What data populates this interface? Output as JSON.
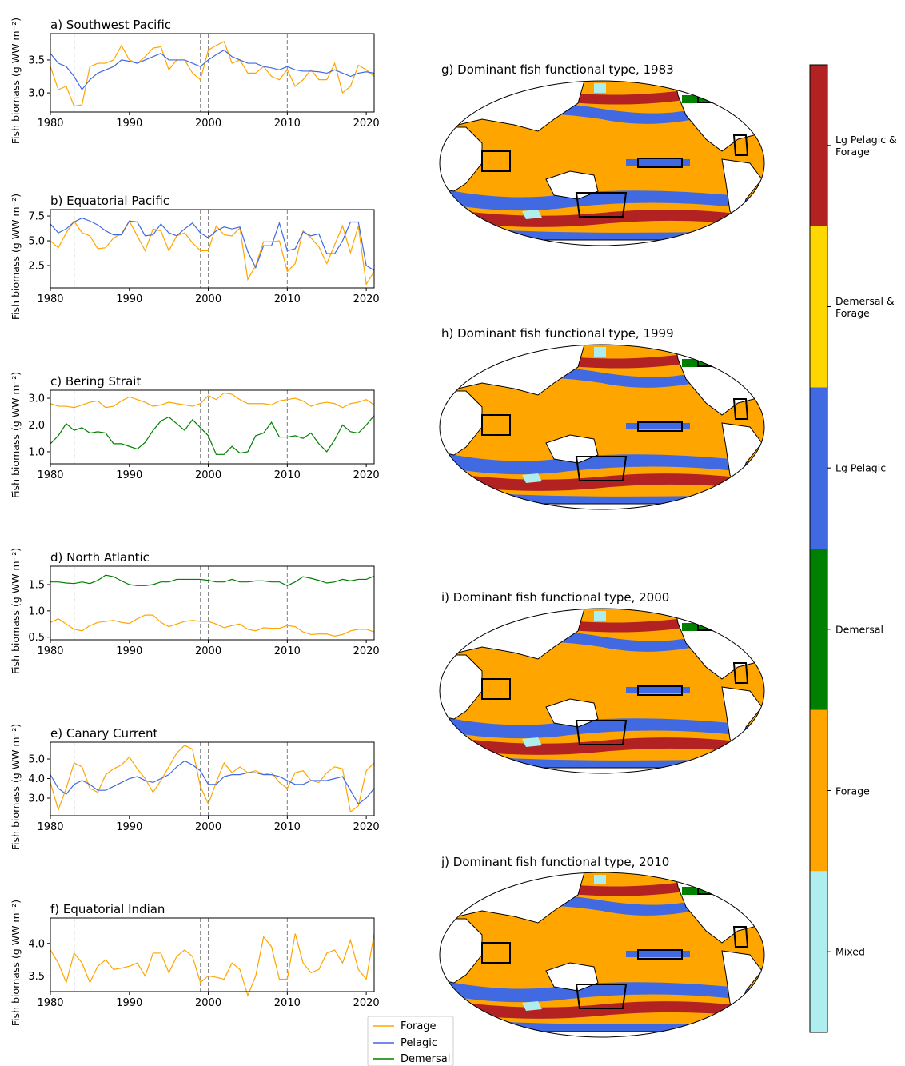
{
  "chart_data": [
    {
      "type": "line",
      "title": "a) Southwest Pacific",
      "ylabel": "Fish biomass (g WW m⁻²)",
      "x": [
        1980,
        1981,
        1982,
        1983,
        1984,
        1985,
        1986,
        1987,
        1988,
        1989,
        1990,
        1991,
        1992,
        1993,
        1994,
        1995,
        1996,
        1997,
        1998,
        1999,
        2000,
        2001,
        2002,
        2003,
        2004,
        2005,
        2006,
        2007,
        2008,
        2009,
        2010,
        2011,
        2012,
        2013,
        2014,
        2015,
        2016,
        2017,
        2018,
        2019,
        2020,
        2021
      ],
      "xlim": [
        1980,
        2021
      ],
      "xticks": [
        1980,
        1990,
        2000,
        2010,
        2020
      ],
      "ylim": [
        2.71,
        3.9
      ],
      "yticks": [
        {
          "value": 3,
          "label": "3.0"
        },
        3.5
      ],
      "vlines": [
        1983,
        1999,
        2000,
        2010
      ],
      "series": [
        {
          "name": "Forage",
          "color": "#ffa500",
          "values": [
            3.4,
            3.05,
            3.1,
            2.8,
            2.82,
            3.4,
            3.45,
            3.45,
            3.5,
            3.72,
            3.5,
            3.45,
            3.55,
            3.68,
            3.7,
            3.35,
            3.5,
            3.5,
            3.3,
            3.2,
            3.65,
            3.72,
            3.78,
            3.45,
            3.5,
            3.3,
            3.3,
            3.4,
            3.25,
            3.2,
            3.35,
            3.1,
            3.2,
            3.35,
            3.2,
            3.2,
            3.45,
            3.0,
            3.1,
            3.42,
            3.35,
            3.25
          ]
        },
        {
          "name": "Pelagic",
          "color": "#4169e1",
          "values": [
            3.6,
            3.45,
            3.4,
            3.25,
            3.05,
            3.2,
            3.3,
            3.35,
            3.4,
            3.5,
            3.48,
            3.45,
            3.5,
            3.55,
            3.6,
            3.5,
            3.5,
            3.5,
            3.45,
            3.4,
            3.5,
            3.58,
            3.65,
            3.55,
            3.5,
            3.45,
            3.45,
            3.4,
            3.38,
            3.35,
            3.4,
            3.35,
            3.33,
            3.33,
            3.32,
            3.3,
            3.35,
            3.3,
            3.25,
            3.3,
            3.32,
            3.3
          ]
        }
      ]
    },
    {
      "type": "line",
      "title": "b) Equatorial Pacific",
      "ylabel": "Fish biomass (g WW m⁻²)",
      "x": [
        1980,
        1981,
        1982,
        1983,
        1984,
        1985,
        1986,
        1987,
        1988,
        1989,
        1990,
        1991,
        1992,
        1993,
        1994,
        1995,
        1996,
        1997,
        1998,
        1999,
        2000,
        2001,
        2002,
        2003,
        2004,
        2005,
        2006,
        2007,
        2008,
        2009,
        2010,
        2011,
        2012,
        2013,
        2014,
        2015,
        2016,
        2017,
        2018,
        2019,
        2020,
        2021
      ],
      "xlim": [
        1980,
        2021
      ],
      "xticks": [
        1980,
        1990,
        2000,
        2010,
        2020
      ],
      "ylim": [
        0.24,
        8.15
      ],
      "yticks": [
        2.5,
        {
          "value": 5,
          "label": "5.0"
        },
        7.5
      ],
      "vlines": [
        1983,
        1999,
        2000,
        2010
      ],
      "series": [
        {
          "name": "Forage",
          "color": "#ffa500",
          "values": [
            5.0,
            4.3,
            5.8,
            7.0,
            5.8,
            5.5,
            4.2,
            4.3,
            5.3,
            5.7,
            7.0,
            5.5,
            4.0,
            6.2,
            6.0,
            4.0,
            5.5,
            5.8,
            4.8,
            4.0,
            4.0,
            6.5,
            5.6,
            5.5,
            6.3,
            1.1,
            2.5,
            4.9,
            4.9,
            5.0,
            1.9,
            2.7,
            6.0,
            5.3,
            4.4,
            2.7,
            4.6,
            6.5,
            3.8,
            6.5,
            0.6,
            1.9
          ]
        },
        {
          "name": "Pelagic",
          "color": "#4169e1",
          "values": [
            6.7,
            5.8,
            6.2,
            6.9,
            7.3,
            7.0,
            6.6,
            6.0,
            5.6,
            5.6,
            7.0,
            6.9,
            5.5,
            5.6,
            6.7,
            5.8,
            5.5,
            6.2,
            6.8,
            5.8,
            5.3,
            6.0,
            6.4,
            6.2,
            6.4,
            3.9,
            2.3,
            4.5,
            4.5,
            6.8,
            4.0,
            4.2,
            5.9,
            5.5,
            5.7,
            3.7,
            3.7,
            5.0,
            6.9,
            6.9,
            2.5,
            2.0
          ]
        }
      ]
    },
    {
      "type": "line",
      "title": "c) Bering Strait",
      "ylabel": "Fish biomass (g WW m⁻²)",
      "x": [
        1980,
        1981,
        1982,
        1983,
        1984,
        1985,
        1986,
        1987,
        1988,
        1989,
        1990,
        1991,
        1992,
        1993,
        1994,
        1995,
        1996,
        1997,
        1998,
        1999,
        2000,
        2001,
        2002,
        2003,
        2004,
        2005,
        2006,
        2007,
        2008,
        2009,
        2010,
        2011,
        2012,
        2013,
        2014,
        2015,
        2016,
        2017,
        2018,
        2019,
        2020,
        2021
      ],
      "xlim": [
        1980,
        2021
      ],
      "xticks": [
        1980,
        1990,
        2000,
        2010,
        2020
      ],
      "ylim": [
        0.55,
        3.3
      ],
      "yticks": [
        {
          "value": 1,
          "label": "1.0"
        },
        {
          "value": 2,
          "label": "2.0"
        },
        {
          "value": 3,
          "label": "3.0"
        }
      ],
      "vlines": [
        1983,
        1999,
        2000,
        2010
      ],
      "series": [
        {
          "name": "Forage",
          "color": "#ffa500",
          "values": [
            2.8,
            2.7,
            2.7,
            2.65,
            2.75,
            2.85,
            2.9,
            2.65,
            2.7,
            2.9,
            3.05,
            2.95,
            2.85,
            2.7,
            2.75,
            2.85,
            2.8,
            2.75,
            2.7,
            2.8,
            3.1,
            2.95,
            3.2,
            3.15,
            2.95,
            2.8,
            2.8,
            2.8,
            2.75,
            2.9,
            2.95,
            3.0,
            2.9,
            2.7,
            2.8,
            2.85,
            2.8,
            2.65,
            2.8,
            2.85,
            2.95,
            2.75
          ]
        },
        {
          "name": "Demersal",
          "color": "#008000",
          "values": [
            1.3,
            1.6,
            2.05,
            1.8,
            1.9,
            1.7,
            1.75,
            1.7,
            1.3,
            1.3,
            1.2,
            1.1,
            1.35,
            1.8,
            2.15,
            2.3,
            2.05,
            1.8,
            2.2,
            1.9,
            1.6,
            0.9,
            0.9,
            1.2,
            0.95,
            1.0,
            1.6,
            1.7,
            2.1,
            1.55,
            1.55,
            1.6,
            1.5,
            1.7,
            1.3,
            1.0,
            1.45,
            2.0,
            1.75,
            1.7,
            2.0,
            2.35
          ]
        }
      ]
    },
    {
      "type": "line",
      "title": "d) North Atlantic",
      "ylabel": "Fish biomass (g WW m⁻²)",
      "x": [
        1980,
        1981,
        1982,
        1983,
        1984,
        1985,
        1986,
        1987,
        1988,
        1989,
        1990,
        1991,
        1992,
        1993,
        1994,
        1995,
        1996,
        1997,
        1998,
        1999,
        2000,
        2001,
        2002,
        2003,
        2004,
        2005,
        2006,
        2007,
        2008,
        2009,
        2010,
        2011,
        2012,
        2013,
        2014,
        2015,
        2016,
        2017,
        2018,
        2019,
        2020,
        2021
      ],
      "xlim": [
        1980,
        2021
      ],
      "xticks": [
        1980,
        1990,
        2000,
        2010,
        2020
      ],
      "ylim": [
        0.45,
        1.85
      ],
      "yticks": [
        0.5,
        {
          "value": 1,
          "label": "1.0"
        },
        1.5
      ],
      "vlines": [
        1983,
        1999,
        2000,
        2010
      ],
      "series": [
        {
          "name": "Forage",
          "color": "#ffa500",
          "values": [
            0.78,
            0.85,
            0.75,
            0.65,
            0.62,
            0.72,
            0.78,
            0.8,
            0.82,
            0.78,
            0.76,
            0.85,
            0.92,
            0.92,
            0.78,
            0.7,
            0.75,
            0.8,
            0.82,
            0.8,
            0.8,
            0.75,
            0.68,
            0.72,
            0.75,
            0.65,
            0.62,
            0.68,
            0.67,
            0.67,
            0.72,
            0.7,
            0.6,
            0.55,
            0.56,
            0.56,
            0.52,
            0.55,
            0.62,
            0.65,
            0.65,
            0.6
          ]
        },
        {
          "name": "Demersal",
          "color": "#008000",
          "values": [
            1.55,
            1.55,
            1.53,
            1.52,
            1.55,
            1.52,
            1.58,
            1.68,
            1.65,
            1.57,
            1.5,
            1.48,
            1.48,
            1.5,
            1.55,
            1.55,
            1.6,
            1.6,
            1.6,
            1.6,
            1.58,
            1.55,
            1.55,
            1.6,
            1.55,
            1.55,
            1.57,
            1.57,
            1.55,
            1.55,
            1.48,
            1.55,
            1.65,
            1.62,
            1.58,
            1.53,
            1.55,
            1.6,
            1.57,
            1.6,
            1.6,
            1.66
          ]
        }
      ]
    },
    {
      "type": "line",
      "title": "e) Canary Current",
      "ylabel": "Fish biomass (g WW m⁻²)",
      "x": [
        1980,
        1981,
        1982,
        1983,
        1984,
        1985,
        1986,
        1987,
        1988,
        1989,
        1990,
        1991,
        1992,
        1993,
        1994,
        1995,
        1996,
        1997,
        1998,
        1999,
        2000,
        2001,
        2002,
        2003,
        2004,
        2005,
        2006,
        2007,
        2008,
        2009,
        2010,
        2011,
        2012,
        2013,
        2014,
        2015,
        2016,
        2017,
        2018,
        2019,
        2020,
        2021
      ],
      "xlim": [
        1980,
        2021
      ],
      "xticks": [
        1980,
        1990,
        2000,
        2010,
        2020
      ],
      "ylim": [
        2.1,
        5.86
      ],
      "yticks": [
        {
          "value": 3,
          "label": "3.0"
        },
        {
          "value": 4,
          "label": "4.0"
        },
        {
          "value": 5,
          "label": "5.0"
        }
      ],
      "vlines": [
        1983,
        1999,
        2000,
        2010
      ],
      "series": [
        {
          "name": "Forage",
          "color": "#ffa500",
          "values": [
            3.8,
            2.4,
            3.5,
            4.8,
            4.6,
            3.5,
            3.3,
            4.2,
            4.5,
            4.7,
            5.1,
            4.5,
            4.0,
            3.3,
            3.9,
            4.6,
            5.3,
            5.7,
            5.5,
            3.6,
            2.7,
            3.8,
            4.8,
            4.3,
            4.6,
            4.3,
            4.4,
            4.2,
            4.3,
            3.8,
            3.5,
            4.3,
            4.4,
            3.9,
            3.8,
            4.3,
            4.6,
            4.5,
            2.3,
            2.6,
            4.4,
            4.8
          ]
        },
        {
          "name": "Pelagic",
          "color": "#4169e1",
          "values": [
            4.2,
            3.5,
            3.2,
            3.7,
            3.9,
            3.7,
            3.4,
            3.4,
            3.6,
            3.8,
            4.0,
            4.1,
            3.9,
            3.8,
            4.0,
            4.2,
            4.6,
            4.9,
            4.7,
            4.4,
            3.7,
            3.7,
            4.1,
            4.2,
            4.2,
            4.3,
            4.3,
            4.2,
            4.2,
            4.1,
            3.9,
            3.7,
            3.7,
            3.9,
            3.9,
            3.9,
            4.0,
            4.1,
            3.4,
            2.7,
            3.0,
            3.5
          ]
        }
      ]
    },
    {
      "type": "line",
      "title": "f) Equatorial Indian",
      "ylabel": "Fish biomass (g WW m⁻²)",
      "x": [
        1980,
        1981,
        1982,
        1983,
        1984,
        1985,
        1986,
        1987,
        1988,
        1989,
        1990,
        1991,
        1992,
        1993,
        1994,
        1995,
        1996,
        1997,
        1998,
        1999,
        2000,
        2001,
        2002,
        2003,
        2004,
        2005,
        2006,
        2007,
        2008,
        2009,
        2010,
        2011,
        2012,
        2013,
        2014,
        2015,
        2016,
        2017,
        2018,
        2019,
        2020,
        2021
      ],
      "xlim": [
        1980,
        2021
      ],
      "xticks": [
        1980,
        1990,
        2000,
        2010,
        2020
      ],
      "ylim": [
        3.26,
        4.39
      ],
      "yticks": [
        3.5,
        {
          "value": 4,
          "label": "4.0"
        }
      ],
      "vlines": [
        1983,
        1999,
        2000,
        2010
      ],
      "series": [
        {
          "name": "Forage",
          "color": "#ffa500",
          "values": [
            3.9,
            3.7,
            3.4,
            3.85,
            3.7,
            3.4,
            3.65,
            3.75,
            3.6,
            3.62,
            3.65,
            3.7,
            3.5,
            3.85,
            3.85,
            3.55,
            3.8,
            3.9,
            3.8,
            3.4,
            3.5,
            3.48,
            3.45,
            3.7,
            3.6,
            3.2,
            3.5,
            4.1,
            3.95,
            3.45,
            3.45,
            4.15,
            3.7,
            3.55,
            3.6,
            3.85,
            3.9,
            3.7,
            4.05,
            3.6,
            3.45,
            4.15
          ]
        }
      ]
    }
  ],
  "maps": [
    {
      "title": "g) Dominant fish functional type, 1983"
    },
    {
      "title": "h) Dominant fish functional type, 1999"
    },
    {
      "title": "i) Dominant fish functional type, 2000"
    },
    {
      "title": "j) Dominant fish functional type, 2010"
    }
  ],
  "colorbar": {
    "categories": [
      "Mixed",
      "Forage",
      "Demersal",
      "Lg Pelagic",
      "Demersal &\n Forage",
      "Lg Pelagic &\n Forage"
    ],
    "colors": [
      "#afeeee",
      "#ffa500",
      "#008000",
      "#4169e1",
      "#ffd700",
      "#b22222"
    ]
  }
}
